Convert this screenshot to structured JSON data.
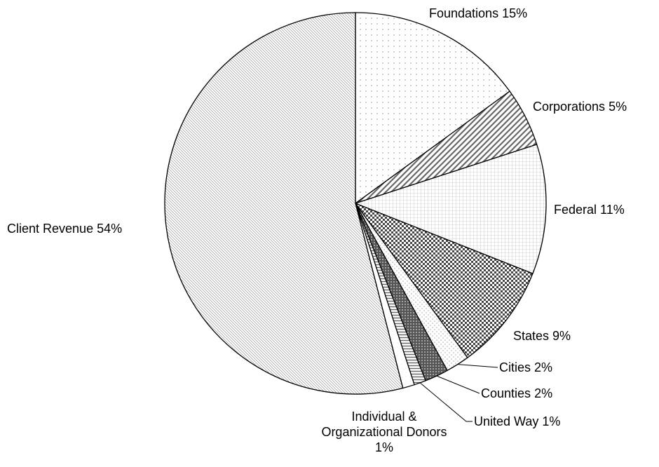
{
  "chart_data": {
    "type": "pie",
    "categories": [
      "Foundations",
      "Corporations",
      "Federal",
      "States",
      "Cities",
      "Counties",
      "United Way",
      "Individual & Organizational Donors",
      "Client Revenue"
    ],
    "values": [
      15,
      5,
      11,
      9,
      2,
      2,
      1,
      1,
      54
    ],
    "value_labels": [
      "15%",
      "5%",
      "11%",
      "9%",
      "2%",
      "2%",
      "1%",
      "1%",
      "54%"
    ],
    "colors": [
      "#888888",
      "#666666",
      "#aaaaaa",
      "#444444",
      "#aaaaaa",
      "#555555",
      "#666666",
      "#bbbbbb",
      "#999999"
    ]
  }
}
